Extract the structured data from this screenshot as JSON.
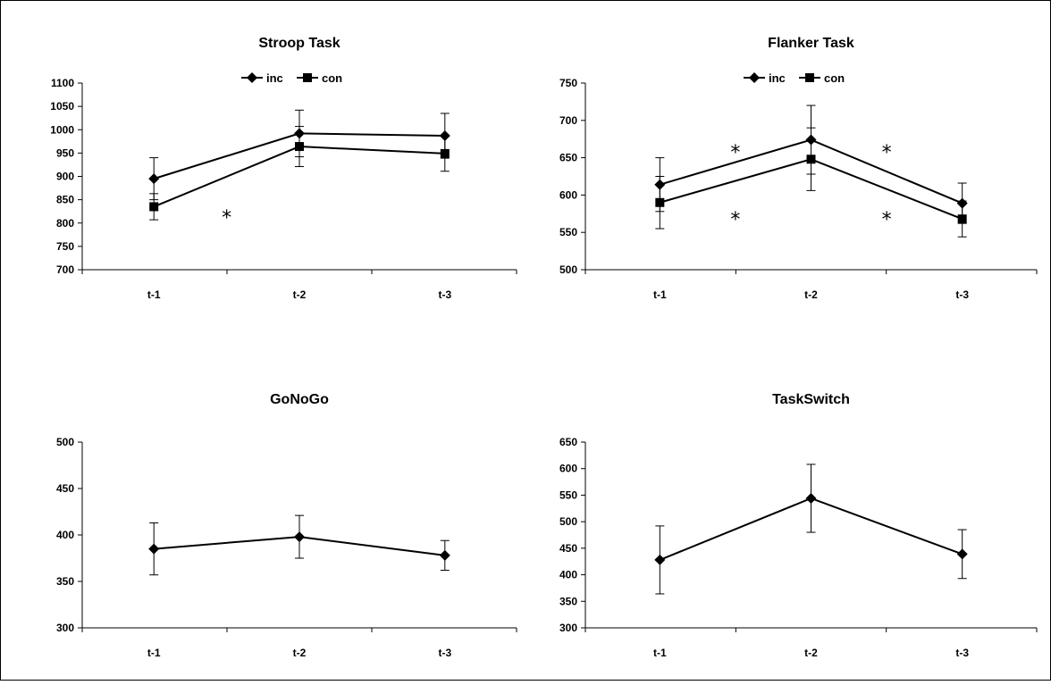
{
  "chart_data": [
    {
      "type": "line",
      "title": "Stroop Task",
      "categories": [
        "t-1",
        "t-2",
        "t-3"
      ],
      "yticks": [
        700,
        750,
        800,
        850,
        900,
        950,
        1000,
        1050,
        1100
      ],
      "ylim": [
        700,
        1100
      ],
      "legend": "top-center",
      "series": [
        {
          "name": "inc",
          "marker": "diamond",
          "values": [
            895,
            992,
            987
          ],
          "errors": [
            45,
            50,
            48
          ]
        },
        {
          "name": "con",
          "marker": "square",
          "values": [
            835,
            964,
            949
          ],
          "errors": [
            28,
            43,
            38
          ]
        }
      ],
      "annotations": [
        {
          "text": "*",
          "x": 1.5,
          "y": 813
        }
      ]
    },
    {
      "type": "line",
      "title": "Flanker Task",
      "categories": [
        "t-1",
        "t-2",
        "t-3"
      ],
      "yticks": [
        500,
        550,
        600,
        650,
        700,
        750
      ],
      "ylim": [
        500,
        750
      ],
      "legend": "top-center",
      "series": [
        {
          "name": "inc",
          "marker": "diamond",
          "values": [
            614,
            674,
            589
          ],
          "errors": [
            36,
            46,
            27
          ]
        },
        {
          "name": "con",
          "marker": "square",
          "values": [
            590,
            648,
            568
          ],
          "errors": [
            35,
            42,
            24
          ]
        }
      ],
      "annotations": [
        {
          "text": "*",
          "x": 1.5,
          "y": 658
        },
        {
          "text": "*",
          "x": 2.5,
          "y": 658
        },
        {
          "text": "*",
          "x": 1.5,
          "y": 568
        },
        {
          "text": "*",
          "x": 2.5,
          "y": 568
        }
      ]
    },
    {
      "type": "line",
      "title": "GoNoGo",
      "categories": [
        "t-1",
        "t-2",
        "t-3"
      ],
      "yticks": [
        300,
        350,
        400,
        450,
        500
      ],
      "ylim": [
        300,
        500
      ],
      "series": [
        {
          "marker": "diamond",
          "values": [
            385,
            398,
            378
          ],
          "errors": [
            28,
            23,
            16
          ]
        }
      ],
      "annotations": []
    },
    {
      "type": "line",
      "title": "TaskSwitch",
      "categories": [
        "t-1",
        "t-2",
        "t-3"
      ],
      "yticks": [
        300,
        350,
        400,
        450,
        500,
        550,
        600,
        650
      ],
      "ylim": [
        300,
        650
      ],
      "series": [
        {
          "marker": "diamond",
          "values": [
            428,
            544,
            439
          ],
          "errors": [
            64,
            64,
            46
          ]
        }
      ],
      "annotations": []
    }
  ]
}
